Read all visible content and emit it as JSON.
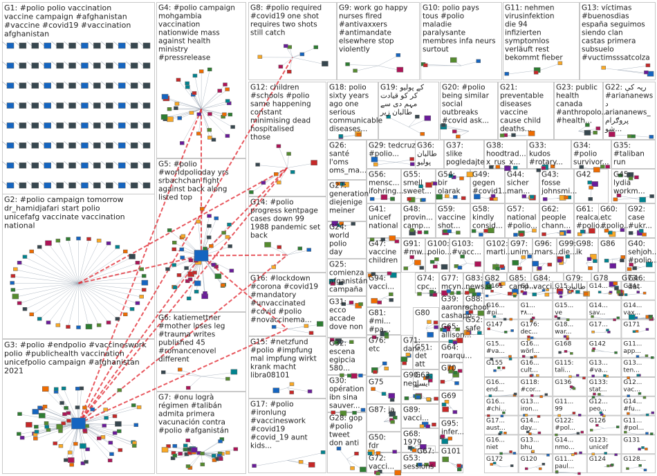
{
  "groups": [
    {
      "id": "G1",
      "label": "G1: #polio polio vaccination vaccine campaign #afghanistan #vaccine #covid19 #vaccination afghanistan",
      "kind": "grid"
    },
    {
      "id": "G2",
      "label": "G2: #polio campaign tomorrow dr_hamidjafari start polio unicefafg vaccinate vaccination national",
      "kind": "ring"
    },
    {
      "id": "G3",
      "label": "G3: #polio #endpolio #vaccineswork polio #publichealth vaccination unicefpolio campaign #afghanistan 2021",
      "kind": "dense"
    },
    {
      "id": "G4",
      "label": "G4: #polio campaign mohgambia vaccination nationwide mass against health ministry #pressrelease",
      "kind": "cluster"
    },
    {
      "id": "G5",
      "label": "G5: #polio #worldpolioday yrs srbachchan fight against back along listed top",
      "kind": "hub"
    },
    {
      "id": "G6",
      "label": "G6: katiemettner #mother loses leg #trauma writes published 45 #romancenovel different",
      "kind": "sparse"
    },
    {
      "id": "G7",
      "label": "G7: #onu logrà régimen #talibán admita primera vacunación contra #polio #afganistán",
      "kind": "cluster"
    },
    {
      "id": "G8",
      "label": "G8: #polio required #covid19 one shot requires two shots still catch",
      "kind": "sparse"
    },
    {
      "id": "G9",
      "label": "G9: work go happy nurses fired #antivaxxers #antimandate elsewhere stop violently",
      "kind": "sparse"
    },
    {
      "id": "G10",
      "label": "G10: polio pays tous #polio maladie paralysante membres infa neurs surtout",
      "kind": "sparse"
    },
    {
      "id": "G11",
      "label": "G11: nehmen virusinfektion die 94 infizierten symptomlos verläuft rest bekommt fieber",
      "kind": "sparse"
    },
    {
      "id": "G13",
      "label": "G13: víctimas #buenosdias españa seguimos siendo clan castas primera subsuelo #vuctimsssatcolza",
      "kind": "sparse"
    },
    {
      "id": "G12",
      "label": "G12: children #schools #polio same happening constant minimising dead hospitalised those",
      "kind": "sparse"
    },
    {
      "id": "G18",
      "label": "G18: polio sixty years ago one serious communicable diseases...",
      "kind": "sparse"
    },
    {
      "id": "G19",
      "label": "G19: کے پولیو کر کو قیادت مہم دی سے طالبان زیر",
      "kind": "sparse"
    },
    {
      "id": "G20",
      "label": "G20: #polio being similar social outbreaks #covid ask...",
      "kind": "sparse"
    },
    {
      "id": "G21",
      "label": "G21: preventable diseases vaccine cause child deaths...",
      "kind": "sparse"
    },
    {
      "id": "G23",
      "label": "G23: public health canada #anthropolo... #health...",
      "kind": "sparse"
    },
    {
      "id": "G22",
      "label": "G22: ریہ کې #ariananews د ariananews_ پروګرام شو...",
      "kind": "sparse"
    },
    {
      "id": "G14",
      "label": "G14: #polio progress kentpage cases down 99 1988 pandemic set back",
      "kind": "sparse"
    },
    {
      "id": "G16",
      "label": "G16: #lockdown #corona #covid19 #mandatory #unvaccinated #covid #polio #novaccinema...",
      "kind": "sparse"
    },
    {
      "id": "G15",
      "label": "G15: #netzfund #polio #impfung mal impfung wirkt krank macht libra08101",
      "kind": "sparse"
    },
    {
      "id": "G17",
      "label": "G17: #polio #ironlung #vaccineswork #covid19 #covid_19 aunt kids...",
      "kind": "sparse"
    },
    {
      "id": "G26",
      "label": "G26: santé l'oms oms_ma... ministre...",
      "kind": "sparse"
    },
    {
      "id": "G27",
      "label": "G27: generation diejenige meiner eltern...",
      "kind": "sparse"
    },
    {
      "id": "G24",
      "label": "G24: world polio day salute brave frontline...",
      "kind": "sparse"
    },
    {
      "id": "G25",
      "label": "G25: comienza afganistán campaña vacunaci...",
      "kind": "sparse"
    },
    {
      "id": "G31",
      "label": "G31: ecco accade dove non ci...",
      "kind": "sparse"
    },
    {
      "id": "G32",
      "label": "G32: escena egipcia 580...",
      "kind": "sparse"
    },
    {
      "id": "G30",
      "label": "G30: opération ibn sina sauver...",
      "kind": "sparse"
    },
    {
      "id": "G28",
      "label": "G28: gop #polio tweet don anti",
      "kind": "sparse"
    },
    {
      "id": "G29",
      "label": "G29: tedcruz #polio...",
      "kind": "sparse"
    },
    {
      "id": "G36",
      "label": "G36: طالبان پولیو مہم کے #taliban...",
      "kind": "sparse"
    },
    {
      "id": "G37",
      "label": "G37: slike pogledajte pedesetih...",
      "kind": "sparse"
    },
    {
      "id": "G38",
      "label": "G38: hoodtrad... x_rus_x...",
      "kind": "sparse"
    },
    {
      "id": "G33",
      "label": "G33: kudos #rotary...",
      "kind": "sparse"
    },
    {
      "id": "G34",
      "label": "G34: #polio survivor...",
      "kind": "sparse"
    },
    {
      "id": "G35",
      "label": "G35: #taliban run #afgha...",
      "kind": "sparse"
    },
    {
      "id": "G56",
      "label": "G56: mensc... ifohring...",
      "kind": "sparse"
    },
    {
      "id": "G55",
      "label": "G55: smell sweet...",
      "kind": "sparse"
    },
    {
      "id": "G54",
      "label": "G54: bir olarak",
      "kind": "sparse"
    },
    {
      "id": "G49",
      "label": "G49: gegen #covid1...",
      "kind": "sparse"
    },
    {
      "id": "G44",
      "label": "G44: sicher man...",
      "kind": "sparse"
    },
    {
      "id": "G43",
      "label": "G43: fosse johnsmi...",
      "kind": "sparse"
    },
    {
      "id": "G42",
      "label": "G42",
      "kind": "sparse"
    },
    {
      "id": "G45",
      "label": "G45: lydia workm...",
      "kind": "sparse"
    },
    {
      "id": "G41",
      "label": "G41: unicef national #polio",
      "kind": "sparse"
    },
    {
      "id": "G48",
      "label": "G48: provin... camp...",
      "kind": "sparse"
    },
    {
      "id": "G59",
      "label": "G59: vaccine shot...",
      "kind": "sparse"
    },
    {
      "id": "G58",
      "label": "G58: kindly consid...",
      "kind": "sparse"
    },
    {
      "id": "G57",
      "label": "G57: national #polio...",
      "kind": "sparse"
    },
    {
      "id": "G62",
      "label": "G62: people chann...",
      "kind": "sparse"
    },
    {
      "id": "G61",
      "label": "G61: realca... #polio...",
      "kind": "sparse"
    },
    {
      "id": "G60",
      "label": "G60: etc #polio...",
      "kind": "sparse"
    },
    {
      "id": "G92",
      "label": "G92: case #ukr...",
      "kind": "sparse"
    },
    {
      "id": "G47",
      "label": "G47: vaccine children long...",
      "kind": "sparse"
    },
    {
      "id": "G91",
      "label": "G91: #mw...",
      "kind": "sparse"
    },
    {
      "id": "G100",
      "label": "G100: polio...",
      "kind": "sparse"
    },
    {
      "id": "G103",
      "label": "G103: #vacc...",
      "kind": "sparse"
    },
    {
      "id": "G102",
      "label": "G102: marti...",
      "kind": "sparse"
    },
    {
      "id": "G97",
      "label": "G97: unim...",
      "kind": "sparse"
    },
    {
      "id": "G96",
      "label": "G96: mars...",
      "kind": "sparse"
    },
    {
      "id": "G99",
      "label": "G99: die...",
      "kind": "sparse"
    },
    {
      "id": "G98",
      "label": "G98: ik",
      "kind": "sparse"
    },
    {
      "id": "G86",
      "label": "G86",
      "kind": "sparse"
    },
    {
      "id": "G40",
      "label": "G40: sehjoh... #polio...",
      "kind": "sparse"
    },
    {
      "id": "G94",
      "label": "G94: vacci...",
      "kind": "sparse"
    },
    {
      "id": "G74",
      "label": "G74: cpc...",
      "kind": "sparse"
    },
    {
      "id": "G77",
      "label": "G77: mcyn...",
      "kind": "sparse"
    },
    {
      "id": "G83",
      "label": "G83: news...",
      "kind": "sparse"
    },
    {
      "id": "G82",
      "label": "G82",
      "kind": "sparse"
    },
    {
      "id": "G85",
      "label": "G85: camp...",
      "kind": "sparse"
    },
    {
      "id": "G84",
      "label": "G84: vacci...",
      "kind": "sparse"
    },
    {
      "id": "G79",
      "label": "G79: طالبان",
      "kind": "sparse"
    },
    {
      "id": "G78",
      "label": "G78",
      "kind": "sparse"
    },
    {
      "id": "G46",
      "label": "G46: dat toch hugod #polio...",
      "kind": "sparse"
    },
    {
      "id": "G73",
      "label": "G73: rotar...",
      "kind": "sparse"
    },
    {
      "id": "G81",
      "label": "G81: #mi... #pa...",
      "kind": "sparse"
    },
    {
      "id": "G39",
      "label": "G39: aaronro... cashapp aaronro...",
      "kind": "sparse"
    },
    {
      "id": "G88",
      "label": "G88: school",
      "kind": "sparse"
    },
    {
      "id": "G76",
      "label": "G76: etc",
      "kind": "sparse"
    },
    {
      "id": "G80",
      "label": "G80",
      "kind": "sparse"
    },
    {
      "id": "G65",
      "label": "G65: allison...",
      "kind": "sparse"
    },
    {
      "id": "G52",
      "label": "G52: safe",
      "kind": "sparse"
    },
    {
      "id": "G75",
      "label": "G75",
      "kind": "sparse"
    },
    {
      "id": "G51",
      "label": "G51: det att vaccin",
      "kind": "sparse"
    },
    {
      "id": "G64",
      "label": "G64: roarqu... bonni...",
      "kind": "sparse"
    },
    {
      "id": "G87",
      "label": "G87: ja",
      "kind": "sparse"
    },
    {
      "id": "G90",
      "label": "G90: negl...",
      "kind": "sparse"
    },
    {
      "id": "G70",
      "label": "G70",
      "kind": "sparse"
    },
    {
      "id": "G63",
      "label": "G63: ایسے کیا",
      "kind": "sparse"
    },
    {
      "id": "G89",
      "label": "G89: vacci...",
      "kind": "sparse"
    },
    {
      "id": "G69",
      "label": "G69",
      "kind": "sparse"
    },
    {
      "id": "G50",
      "label": "G50: fdr",
      "kind": "sparse"
    },
    {
      "id": "G68",
      "label": "G68: 1979",
      "kind": "sparse"
    },
    {
      "id": "G95",
      "label": "G95: infer...",
      "kind": "sparse"
    },
    {
      "id": "G72",
      "label": "G72: vacci...",
      "kind": "sparse"
    },
    {
      "id": "G53",
      "label": "G53: sessions syredcr...",
      "kind": "sparse"
    },
    {
      "id": "G67",
      "label": "G67: oversi...",
      "kind": "sparse"
    },
    {
      "id": "G101",
      "label": "G101",
      "kind": "sparse"
    },
    {
      "id": "G71",
      "label": "G71: danr...",
      "kind": "sparse"
    },
    {
      "id": "G66",
      "label": "G66: marie",
      "kind": "sparse"
    }
  ],
  "small_groups": [
    {
      "id": "G161",
      "label": "G161"
    },
    {
      "id": "G1",
      "label": "G1..."
    },
    {
      "id": "G15a",
      "label": "G15..."
    },
    {
      "id": "G14x",
      "label": "G14..."
    },
    {
      "id": "G14y",
      "label": "G14..."
    },
    {
      "id": "G16a",
      "label": "G16... #pi... dise..."
    },
    {
      "id": "G1b",
      "label": "G1... ٣٨..."
    },
    {
      "id": "G15b",
      "label": "G15... ve"
    },
    {
      "id": "G14a",
      "label": "G14... sav..."
    },
    {
      "id": "G14b",
      "label": "G14... vax..."
    },
    {
      "id": "G147",
      "label": "G147"
    },
    {
      "id": "G176",
      "label": "G176: dec..."
    },
    {
      "id": "G18a",
      "label": "G18... war..."
    },
    {
      "id": "G17a",
      "label": "G17..."
    },
    {
      "id": "G171",
      "label": "G171"
    },
    {
      "id": "G15c",
      "label": "G15... #va..."
    },
    {
      "id": "G16b",
      "label": "G16... wörl..."
    },
    {
      "id": "G168",
      "label": "G168"
    },
    {
      "id": "G142",
      "label": "G142"
    },
    {
      "id": "G11a",
      "label": "G11... app..."
    },
    {
      "id": "G155",
      "label": "G155"
    },
    {
      "id": "G16c",
      "label": "G16... cult..."
    },
    {
      "id": "G115",
      "label": "G115: tali..."
    },
    {
      "id": "G13a",
      "label": "G13... #va..."
    },
    {
      "id": "G13b",
      "label": "G13... ten..."
    },
    {
      "id": "G16d",
      "label": "G16... end..."
    },
    {
      "id": "G118",
      "label": "G118: #cor..."
    },
    {
      "id": "G136",
      "label": "G136"
    },
    {
      "id": "G133",
      "label": "G133: stat..."
    },
    {
      "id": "G12a",
      "label": "G12... vac..."
    },
    {
      "id": "G16e",
      "label": "G16... #chi..."
    },
    {
      "id": "G13c",
      "label": "G13... iron..."
    },
    {
      "id": "G11b",
      "label": "G11... 99"
    },
    {
      "id": "G12b",
      "label": "G12... peo..."
    },
    {
      "id": "G14c",
      "label": "G14... #fu..."
    },
    {
      "id": "G17b",
      "label": "G17... aust..."
    },
    {
      "id": "G14d",
      "label": "G14... day..."
    },
    {
      "id": "G122",
      "label": "G122: #pol..."
    },
    {
      "id": "G126",
      "label": "G126"
    },
    {
      "id": "G11c",
      "label": "G11... #pol..."
    },
    {
      "id": "G16f",
      "label": "G16... niet"
    },
    {
      "id": "G13d",
      "label": "G13... bhu"
    },
    {
      "id": "G14e",
      "label": "G14... nmo..."
    },
    {
      "id": "G123",
      "label": "G123: unicef"
    },
    {
      "id": "G131",
      "label": "G131"
    },
    {
      "id": "G172",
      "label": "G172"
    },
    {
      "id": "G120",
      "label": "G120"
    },
    {
      "id": "G11d",
      "label": "G11... paul..."
    },
    {
      "id": "G124",
      "label": "G124"
    },
    {
      "id": "G128",
      "label": "G128..."
    }
  ],
  "colors": {
    "border": "#c8c8c8",
    "edge_between": "#e0202a",
    "edge_within": "#9aa6b4",
    "node_palette": [
      "#2e7d32",
      "#1565c0",
      "#c62828",
      "#f9a825",
      "#6a1b9a",
      "#00838f",
      "#ef6c00",
      "#37474f",
      "#ad1457",
      "#558b2f"
    ]
  }
}
